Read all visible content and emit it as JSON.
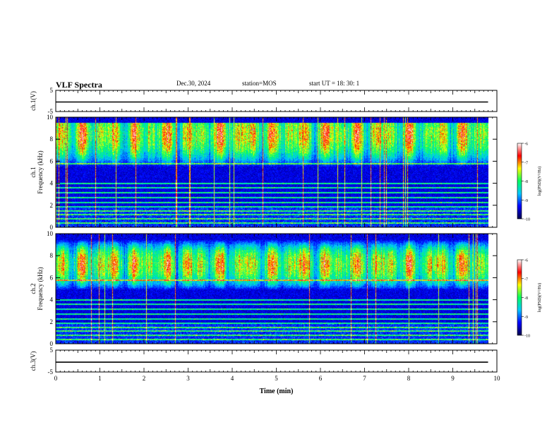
{
  "header": {
    "title": "VLF Spectra",
    "date": "Dec.30, 2024",
    "station": "station=MOS",
    "start": "start  UT  =   18: 30: 1"
  },
  "colors": {
    "spectrum": [
      "#00004a",
      "#0000ff",
      "#00c8ff",
      "#00ff60",
      "#ffff00",
      "#ff0000",
      "#ffffff"
    ],
    "background": "#000000",
    "trace": "#000000"
  },
  "chart_data": [
    {
      "type": "line",
      "panel": "ch1-waveform",
      "ylabel": "ch.1(V)",
      "ylim": [
        -5,
        5
      ],
      "yticks": [
        "5",
        "-5"
      ],
      "series": [
        {
          "values": [
            -0.5,
            -0.5
          ]
        }
      ],
      "x": [
        0,
        9.8
      ],
      "xlim": [
        0,
        10
      ]
    },
    {
      "type": "heatmap",
      "panel": "ch1-spectrogram",
      "ylabel": "ch.1\nFrequency (kHz)",
      "ylim": [
        0,
        10
      ],
      "yticks": [
        "0",
        "2",
        "4",
        "6",
        "8",
        "10"
      ],
      "xlim": [
        0,
        10
      ],
      "data_end_min": 9.8,
      "band_khz": [
        5.5,
        9.5
      ],
      "band_peak_khz": 8.5,
      "colorbar": {
        "label": "log(PSD)(V²/Hz)",
        "range": [
          -10,
          -6
        ],
        "ticks": [
          "-6",
          "-7",
          "-8",
          "-9",
          "-10"
        ]
      }
    },
    {
      "type": "heatmap",
      "panel": "ch2-spectrogram",
      "ylabel": "ch.2\nFrequency (kHz)",
      "ylim": [
        0,
        10
      ],
      "yticks": [
        "0",
        "2",
        "4",
        "6",
        "8",
        "10"
      ],
      "xlim": [
        0,
        10
      ],
      "data_end_min": 9.8,
      "band_khz": [
        5.0,
        9.5
      ],
      "band_peak_khz": 7.2,
      "colorbar": {
        "label": "log(PSD)(V²/Hz)",
        "range": [
          -10,
          -6
        ],
        "ticks": [
          "-6",
          "-7",
          "-8",
          "-9",
          "-10"
        ]
      }
    },
    {
      "type": "line",
      "panel": "ch3-waveform",
      "ylabel": "ch.3(V)",
      "ylim": [
        -5,
        5
      ],
      "yticks": [
        "5",
        "-5"
      ],
      "series": [
        {
          "values": [
            -0.5,
            -0.5
          ]
        }
      ],
      "x": [
        0,
        9.8
      ],
      "xlim": [
        0,
        10
      ]
    }
  ],
  "xaxis": {
    "label": "Time  (min)",
    "ticks": [
      "0",
      "1",
      "2",
      "3",
      "4",
      "5",
      "6",
      "7",
      "8",
      "9",
      "10"
    ]
  }
}
